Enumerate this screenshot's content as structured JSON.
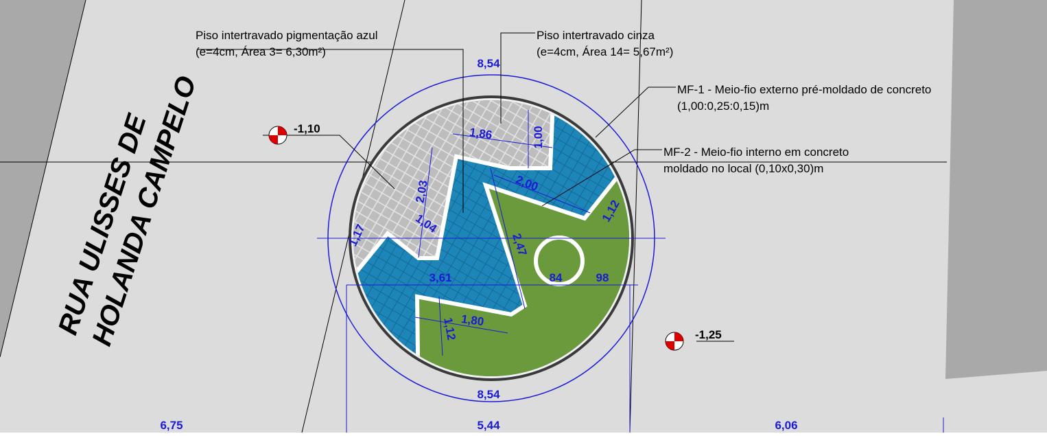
{
  "street": {
    "line1": "RUA ULISSES DE",
    "line2": "HOLANDA CAMPELO"
  },
  "notes": [
    {
      "line1": "Piso intertravado pigmentação azul",
      "line2": "(e=4cm, Área 3= 6,30m²)"
    },
    {
      "line1": "Piso intertravado cinza",
      "line2": "(e=4cm, Área 14= 5,67m²)"
    },
    {
      "line1": "MF-1 - Meio-fio externo pré-moldado de concreto",
      "line2": "(1,00:0,25:0,15)m"
    },
    {
      "line1": "MF-2 - Meio-fio interno em concreto",
      "line2": "moldado no local (0,10x0,30)m"
    }
  ],
  "levels": [
    "-1,10",
    "-1,25"
  ],
  "dimensions": [
    "8,54",
    "8,54",
    "1,86",
    "1,00",
    "2,00",
    "1,12",
    "2,03",
    "1,04",
    "1,17",
    "2,47",
    "3,61",
    "84",
    "98",
    "1,80",
    "1,12",
    "6,75",
    "5,44",
    "6,06"
  ]
}
